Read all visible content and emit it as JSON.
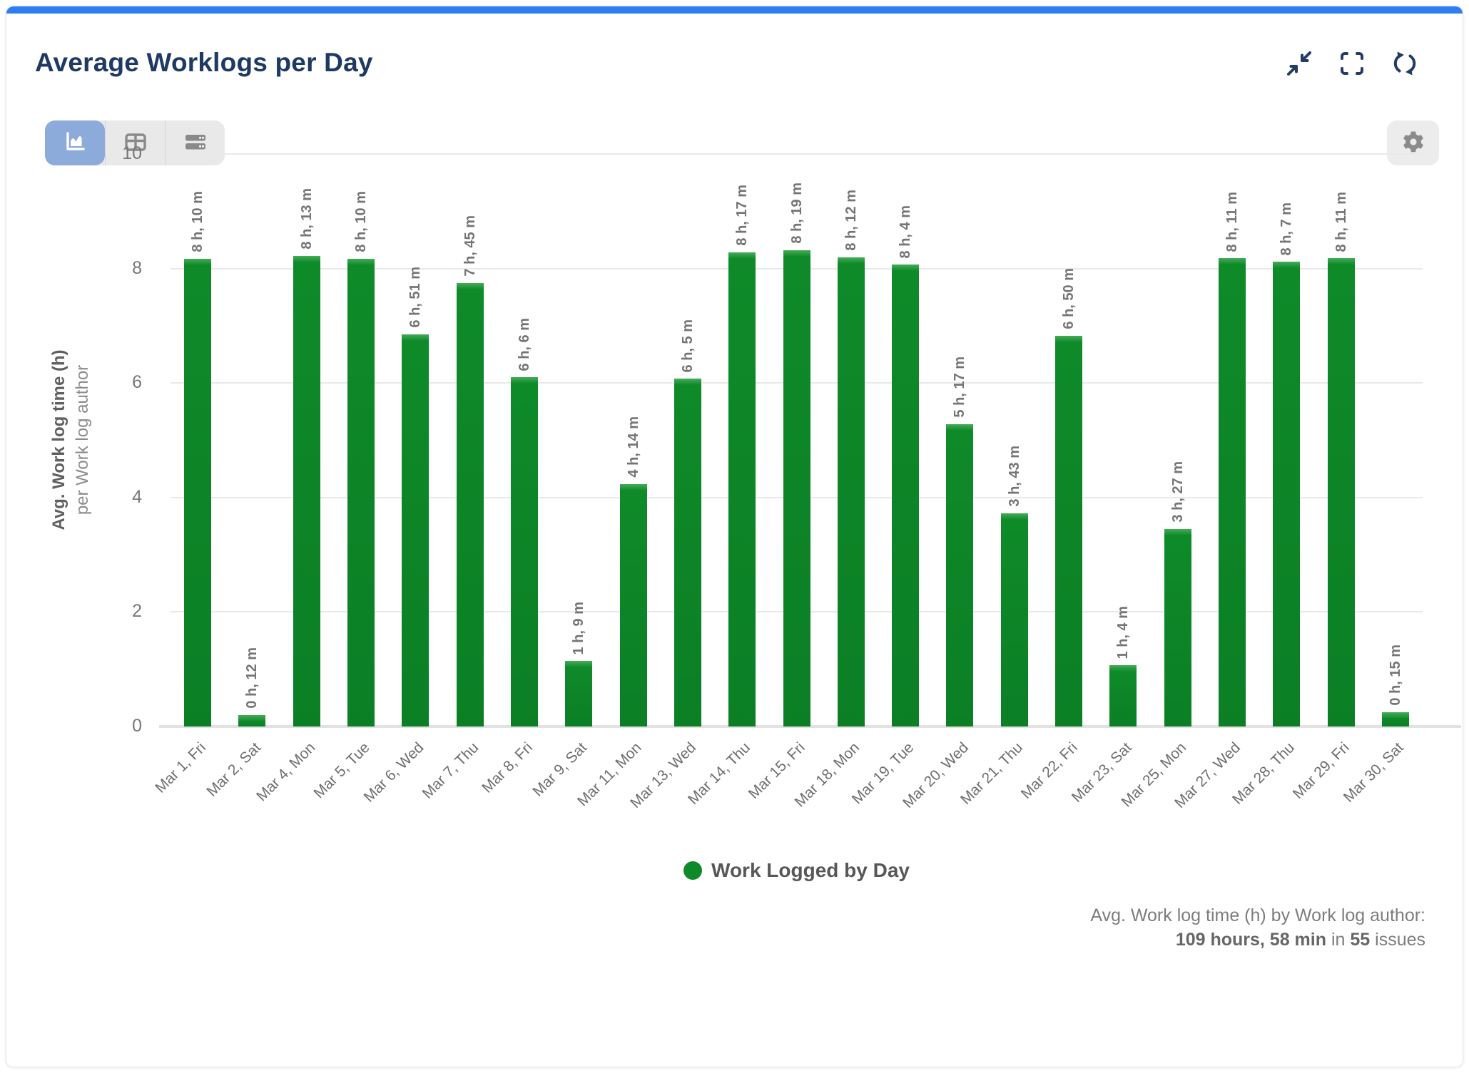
{
  "colors": {
    "accent_blue": "#2f7df2",
    "bar_green": "#0e8a29",
    "title_navy": "#1e3a63",
    "selected_toggle_blue": "#8cabdb"
  },
  "header": {
    "title": "Average Worklogs per Day",
    "icons": [
      "collapse-icon",
      "fullscreen-icon",
      "refresh-icon"
    ]
  },
  "toolbar": {
    "views": [
      {
        "id": "chart-view",
        "icon": "area-chart-icon",
        "selected": true
      },
      {
        "id": "table-view",
        "icon": "table-icon",
        "selected": false
      },
      {
        "id": "list-view",
        "icon": "rows-icon",
        "selected": false
      }
    ],
    "settings_icon": "gear-icon"
  },
  "chart_data": {
    "type": "bar",
    "title": "Average Worklogs per Day",
    "ylabel": "Avg. Work log time (h)",
    "ylabel_sub": "per Work log author",
    "xlabel": "",
    "ylim": [
      0,
      10
    ],
    "yticks": [
      0,
      2,
      4,
      6,
      8,
      10
    ],
    "grid": true,
    "bar_color": "#0e8a29",
    "legend": {
      "label": "Work Logged by Day",
      "position": "bottom"
    },
    "categories": [
      "Mar 1, Fri",
      "Mar 2, Sat",
      "Mar 4, Mon",
      "Mar 5, Tue",
      "Mar 6, Wed",
      "Mar 7, Thu",
      "Mar 8, Fri",
      "Mar 9, Sat",
      "Mar 11, Mon",
      "Mar 13, Wed",
      "Mar 14, Thu",
      "Mar 15, Fri",
      "Mar 18, Mon",
      "Mar 19, Tue",
      "Mar 20, Wed",
      "Mar 21, Thu",
      "Mar 22, Fri",
      "Mar 23, Sat",
      "Mar 25, Mon",
      "Mar 27, Wed",
      "Mar 28, Thu",
      "Mar 29, Fri",
      "Mar 30, Sat"
    ],
    "values": [
      8.17,
      0.2,
      8.22,
      8.17,
      6.85,
      7.75,
      6.1,
      1.15,
      4.23,
      6.08,
      8.28,
      8.32,
      8.2,
      8.07,
      5.28,
      3.72,
      6.83,
      1.07,
      3.45,
      8.18,
      8.12,
      8.18,
      0.25
    ],
    "bar_labels": [
      "8 h, 10 m",
      "0 h, 12 m",
      "8 h, 13 m",
      "8 h, 10 m",
      "6 h, 51 m",
      "7 h, 45 m",
      "6 h, 6 m",
      "1 h, 9 m",
      "4 h, 14 m",
      "6 h, 5 m",
      "8 h, 17 m",
      "8 h, 19 m",
      "8 h, 12 m",
      "8 h, 4 m",
      "5 h, 17 m",
      "3 h, 43 m",
      "6 h, 50 m",
      "1 h, 4 m",
      "3 h, 27 m",
      "8 h, 11 m",
      "8 h, 7 m",
      "8 h, 11 m",
      "0 h, 15 m"
    ]
  },
  "summary": {
    "line1": "Avg. Work log time (h) by Work log author:",
    "total_bold": "109 hours, 58 min",
    "mid_text": " in ",
    "issues_bold": "55",
    "tail_text": " issues"
  }
}
